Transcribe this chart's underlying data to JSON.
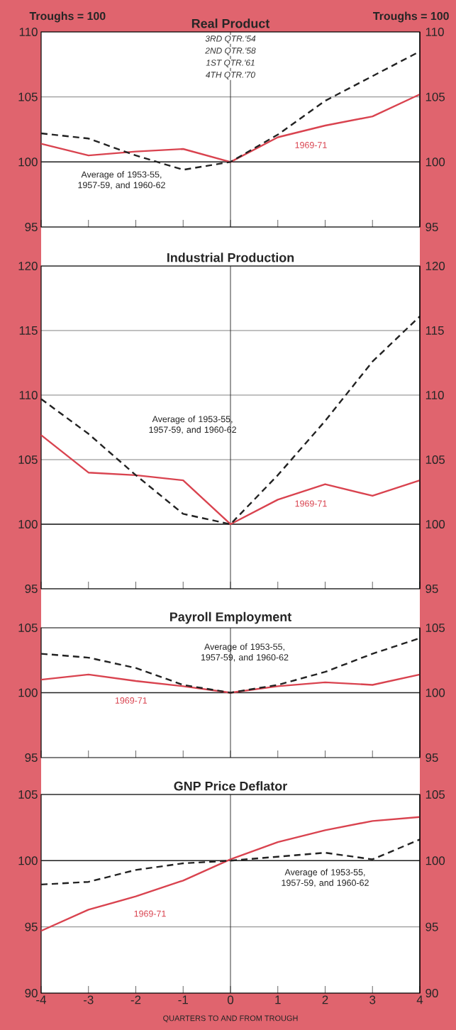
{
  "chart_data": [
    {
      "type": "line",
      "title": "Real Product",
      "ylabel": "Troughs = 100",
      "y2label": "Troughs = 100",
      "x": [
        -4,
        -3,
        -2,
        -1,
        0,
        1,
        2,
        3,
        4
      ],
      "xlim": [
        -4,
        4
      ],
      "xticks": [
        -4,
        -3,
        -2,
        -1,
        0,
        1,
        2,
        3,
        4
      ],
      "ylim": [
        95,
        110
      ],
      "yticks": [
        95,
        100,
        105,
        110
      ],
      "y2lim": [
        95,
        110
      ],
      "y2ticks": [
        95,
        100,
        105,
        110
      ],
      "grid": "y",
      "tick_labels": "y",
      "legend": false,
      "annotations": [
        "3RD QTR.'54",
        "2ND QTR.'58",
        "1ST QTR.'61",
        "4TH QTR.'70"
      ],
      "ref_lines": [
        {
          "axis": "x",
          "value": 0,
          "color": "#222222"
        },
        {
          "axis": "y",
          "value": 100,
          "color": "#222222"
        }
      ],
      "series": [
        {
          "name": "1969-71",
          "color": "#d9434f",
          "line_style": "solid",
          "values": [
            101.4,
            100.5,
            100.8,
            101.0,
            100.0,
            101.9,
            102.8,
            103.5,
            105.2
          ]
        },
        {
          "name": "Average of 1953-55, 1957-59, and 1960-62",
          "color": "#222222",
          "line_style": "dashed",
          "values": [
            102.2,
            101.8,
            100.5,
            99.4,
            100.0,
            102.1,
            104.7,
            106.6,
            108.5
          ]
        }
      ]
    },
    {
      "type": "line",
      "title": "Industrial Production",
      "x": [
        -4,
        -3,
        -2,
        -1,
        0,
        1,
        2,
        3,
        4
      ],
      "xlim": [
        -4,
        4
      ],
      "xticks": [
        -4,
        -3,
        -2,
        -1,
        0,
        1,
        2,
        3,
        4
      ],
      "ylim": [
        95,
        120
      ],
      "yticks": [
        95,
        100,
        105,
        110,
        115,
        120
      ],
      "y2lim": [
        95,
        120
      ],
      "y2ticks": [
        95,
        100,
        105,
        110,
        115,
        120
      ],
      "grid": "y",
      "tick_labels": "y",
      "legend": false,
      "ref_lines": [
        {
          "axis": "x",
          "value": 0,
          "color": "#222222"
        },
        {
          "axis": "y",
          "value": 100,
          "color": "#222222"
        }
      ],
      "series": [
        {
          "name": "1969-71",
          "color": "#d9434f",
          "line_style": "solid",
          "values": [
            106.9,
            104.0,
            103.8,
            103.4,
            100.0,
            101.9,
            103.1,
            102.2,
            103.4
          ]
        },
        {
          "name": "Average of 1953-55, 1957-59, and 1960-62",
          "color": "#222222",
          "line_style": "dashed",
          "values": [
            109.7,
            107.0,
            103.8,
            100.8,
            100.0,
            103.8,
            108.0,
            112.6,
            116.1
          ]
        }
      ]
    },
    {
      "type": "line",
      "title": "Payroll Employment",
      "x": [
        -4,
        -3,
        -2,
        -1,
        0,
        1,
        2,
        3,
        4
      ],
      "xlim": [
        -4,
        4
      ],
      "xticks": [
        -4,
        -3,
        -2,
        -1,
        0,
        1,
        2,
        3,
        4
      ],
      "ylim": [
        95,
        105
      ],
      "yticks": [
        95,
        100,
        105
      ],
      "y2lim": [
        95,
        105
      ],
      "y2ticks": [
        95,
        100,
        105
      ],
      "tick_labels": "y",
      "legend": false,
      "ref_lines": [
        {
          "axis": "x",
          "value": 0,
          "color": "#222222"
        },
        {
          "axis": "y",
          "value": 100,
          "color": "#222222"
        }
      ],
      "series": [
        {
          "name": "1969-71",
          "color": "#d9434f",
          "line_style": "solid",
          "values": [
            101.0,
            101.4,
            100.9,
            100.5,
            100.0,
            100.5,
            100.8,
            100.6,
            101.4
          ]
        },
        {
          "name": "Average of 1953-55, 1957-59, and 1960-62",
          "color": "#222222",
          "line_style": "dashed",
          "values": [
            103.0,
            102.7,
            101.9,
            100.6,
            100.0,
            100.6,
            101.6,
            103.0,
            104.2
          ]
        }
      ]
    },
    {
      "type": "line",
      "title": "GNP Price Deflator",
      "xlabel": "QUARTERS TO AND FROM TROUGH",
      "x": [
        -4,
        -3,
        -2,
        -1,
        0,
        1,
        2,
        3,
        4
      ],
      "xlim": [
        -4,
        4
      ],
      "xticks": [
        -4,
        -3,
        -2,
        -1,
        0,
        1,
        2,
        3,
        4
      ],
      "ylim": [
        90,
        105
      ],
      "yticks": [
        90,
        95,
        100,
        105
      ],
      "y2lim": [
        90,
        105
      ],
      "y2ticks": [
        90,
        95,
        100,
        105
      ],
      "grid": "y",
      "legend": false,
      "ref_lines": [
        {
          "axis": "x",
          "value": 0,
          "color": "#222222"
        },
        {
          "axis": "y",
          "value": 100,
          "color": "#222222"
        }
      ],
      "series": [
        {
          "name": "1969-71",
          "color": "#d9434f",
          "line_style": "solid",
          "values": [
            94.7,
            96.3,
            97.3,
            98.5,
            100.1,
            101.4,
            102.3,
            103.0,
            103.3
          ]
        },
        {
          "name": "Average of 1953-55, 1957-59, and 1960-62",
          "color": "#222222",
          "line_style": "dashed",
          "values": [
            98.2,
            98.4,
            99.3,
            99.8,
            100.0,
            100.3,
            100.6,
            100.1,
            101.6
          ]
        }
      ]
    }
  ]
}
